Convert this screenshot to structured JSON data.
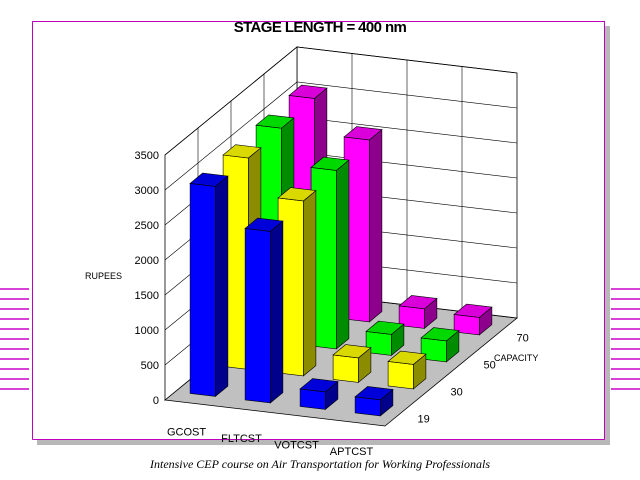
{
  "page": {
    "caption": "Intensive CEP course on Air Transportation for Working  Professionals",
    "accent_color": "#cc00cc"
  },
  "chart_data": {
    "type": "bar",
    "subtype": "3d-bar",
    "title": "STAGE LENGTH = 400 nm",
    "ylabel": "RUPEES",
    "zlabel": "CAPACITY",
    "ylim": [
      0,
      3500
    ],
    "yticks": [
      0,
      500,
      1000,
      1500,
      2000,
      2500,
      3000,
      3500
    ],
    "categories": [
      "GCOST",
      "FLTCST",
      "VOTCST",
      "APTCST"
    ],
    "series": [
      {
        "name": "19",
        "color": "#0000ff",
        "values": [
          3000,
          2450,
          250,
          230
        ]
      },
      {
        "name": "30",
        "color": "#ffff00",
        "values": [
          3020,
          2500,
          350,
          350
        ]
      },
      {
        "name": "50",
        "color": "#00ff00",
        "values": [
          3060,
          2550,
          300,
          300
        ]
      },
      {
        "name": "70",
        "color": "#ff00ff",
        "values": [
          3100,
          2600,
          280,
          250
        ]
      }
    ],
    "grid": true
  }
}
